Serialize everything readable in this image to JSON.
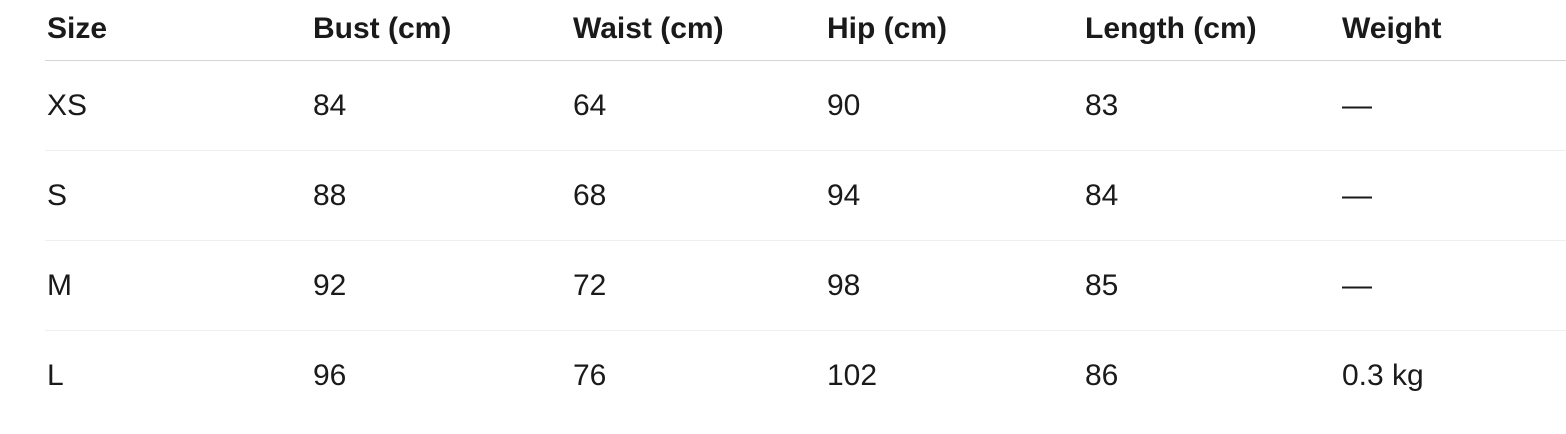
{
  "table": {
    "columns": [
      {
        "key": "size",
        "label": "Size"
      },
      {
        "key": "bust",
        "label": "Bust (cm)"
      },
      {
        "key": "waist",
        "label": "Waist (cm)"
      },
      {
        "key": "hip",
        "label": "Hip (cm)"
      },
      {
        "key": "length",
        "label": "Length (cm)"
      },
      {
        "key": "weight",
        "label": "Weight"
      }
    ],
    "rows": [
      {
        "cells": [
          "XS",
          "84",
          "64",
          "90",
          "83",
          "—"
        ]
      },
      {
        "cells": [
          "S",
          "88",
          "68",
          "94",
          "84",
          "—"
        ]
      },
      {
        "cells": [
          "M",
          "92",
          "72",
          "98",
          "85",
          "—"
        ]
      },
      {
        "cells": [
          "L",
          "96",
          "76",
          "102",
          "86",
          "0.3 kg"
        ]
      }
    ]
  },
  "colors": {
    "background": "#ffffff",
    "text": "#1a1a1a",
    "header_divider": "#d5d5d5",
    "row_divider": "#efefef"
  }
}
